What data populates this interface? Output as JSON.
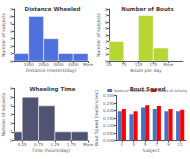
{
  "chart_data": [
    {
      "type": "histogram",
      "title": "Distance Wheeled",
      "xlabel": "Distance (meters/day)",
      "ylabel": "Number of subjects",
      "bins": [
        0,
        1000,
        2000,
        3000,
        4000,
        5000
      ],
      "values": [
        1,
        6,
        3,
        1,
        1
      ],
      "xlim": [
        0,
        5000
      ],
      "xticks": [
        1000,
        2000,
        3000,
        4000,
        {
          "value": 5000,
          "label": "More"
        }
      ],
      "ylim": [
        0,
        7
      ],
      "yticks": [
        0,
        1,
        2,
        3,
        4,
        5,
        6,
        7
      ],
      "grid": false
    },
    {
      "type": "histogram",
      "title": "Number of Bouts",
      "xlabel": "Bouts per day",
      "ylabel": "Number of subjects",
      "bins": [
        25,
        75,
        125,
        175,
        226,
        276
      ],
      "values": [
        3,
        0,
        7,
        2,
        0
      ],
      "xlim": [
        25,
        276
      ],
      "xticks": [
        25,
        75,
        125,
        175,
        {
          "value": 226,
          "label": "More"
        }
      ],
      "ylim": [
        0,
        8
      ],
      "yticks": [
        0,
        1,
        2,
        3,
        4,
        5,
        6,
        7,
        8
      ],
      "grid": false
    },
    {
      "type": "histogram",
      "title": "Wheeling Time",
      "xlabel": "Time (hours/day)",
      "ylabel": "Number of subjects",
      "bins": [
        0,
        0.25,
        0.75,
        1.25,
        1.75,
        2.26
      ],
      "values": [
        1,
        5,
        4,
        1,
        1
      ],
      "xlim": [
        0,
        2.26
      ],
      "xticks": [
        0.25,
        0.75,
        1.25,
        1.75,
        {
          "value": 2.26,
          "label": "More"
        }
      ],
      "ylim": [
        0,
        6
      ],
      "yticks": [
        0,
        1,
        2,
        3,
        4,
        5,
        6
      ],
      "grid": false
    },
    {
      "type": "bar",
      "title": "Bout Speed",
      "xlabel": "Subject",
      "ylabel": "Bout Speed (meters/sec)",
      "categories": [
        "1",
        "3",
        "5",
        "7",
        "9",
        "11"
      ],
      "series": [
        {
          "name": "Bouts of Movement",
          "color": "#4472C4",
          "values": [
            0.195,
            0.175,
            0.22,
            0.21,
            0.195,
            0.195
          ]
        },
        {
          "name": "Bouts of Activity",
          "color": "#FF0000",
          "values": [
            0.21,
            0.195,
            0.235,
            0.23,
            0.21,
            0.205
          ]
        }
      ],
      "ylim": [
        0,
        0.3
      ],
      "yticks": [
        {
          "value": 0,
          "label": "0.000"
        },
        {
          "value": 0.05,
          "label": "0.050"
        },
        {
          "value": 0.1,
          "label": "0.100"
        },
        {
          "value": 0.15,
          "label": "0.150"
        },
        {
          "value": 0.2,
          "label": "0.200"
        },
        {
          "value": 0.25,
          "label": "0.250"
        },
        {
          "value": 0.3,
          "label": "0.300"
        }
      ],
      "legend": "upper right",
      "grid": false
    }
  ]
}
